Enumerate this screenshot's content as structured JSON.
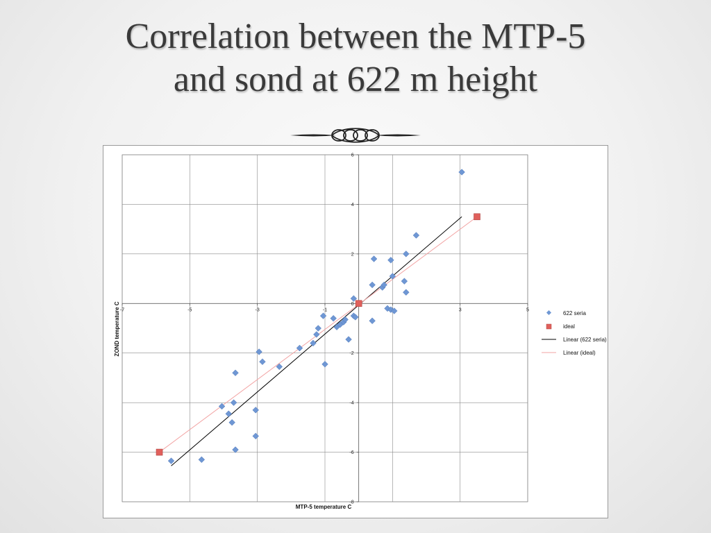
{
  "slide": {
    "title_line1": "Correlation between the MTP-5",
    "title_line2": "and sond at 622 m height"
  },
  "colors": {
    "background": "#f1f1f1",
    "title": "#3a3a3a",
    "series_622": "#6f97d4",
    "series_ideal": "#e0605c",
    "trend_622": "#000000",
    "trend_ideal": "#f2a3a3",
    "grid": "#8a8a8a"
  },
  "chart_data": {
    "type": "scatter",
    "xlabel": "MTP-5 temperature C",
    "ylabel": "ZOND temperature C",
    "xlim": [
      -7,
      5
    ],
    "ylim": [
      -8,
      6
    ],
    "x_ticks": [
      -7,
      -5,
      -3,
      -1,
      1,
      3,
      5
    ],
    "y_ticks": [
      -8,
      -6,
      -4,
      -2,
      0,
      2,
      4,
      6
    ],
    "x_tick_labels": [
      "-7",
      "-5",
      "-3",
      "-1",
      "1",
      "3",
      "5"
    ],
    "y_tick_labels": [
      "-8",
      "-6",
      "-4",
      "-2",
      "0",
      "2",
      "4",
      "6"
    ],
    "grid": true,
    "legend_position": "right",
    "legend": [
      "622 seria",
      "ideal",
      "Linear (622 seria)",
      "Linear (ideal)"
    ],
    "series": [
      {
        "name": "622 seria",
        "marker": "diamond",
        "points": [
          [
            -5.55,
            -6.35
          ],
          [
            -4.65,
            -6.3
          ],
          [
            -3.65,
            -5.9
          ],
          [
            -3.05,
            -5.35
          ],
          [
            -3.05,
            -4.3
          ],
          [
            -3.75,
            -4.8
          ],
          [
            -3.85,
            -4.45
          ],
          [
            -4.05,
            -4.15
          ],
          [
            -3.7,
            -4.0
          ],
          [
            -3.65,
            -2.8
          ],
          [
            -2.95,
            -1.95
          ],
          [
            -2.85,
            -2.35
          ],
          [
            -2.35,
            -2.55
          ],
          [
            -1.75,
            -1.8
          ],
          [
            -1.35,
            -1.6
          ],
          [
            -1.25,
            -1.25
          ],
          [
            -1.2,
            -1.0
          ],
          [
            -1.0,
            -2.45
          ],
          [
            -1.05,
            -0.5
          ],
          [
            -0.75,
            -0.6
          ],
          [
            -0.65,
            -0.95
          ],
          [
            -0.55,
            -0.85
          ],
          [
            -0.45,
            -0.75
          ],
          [
            -0.4,
            -0.65
          ],
          [
            -0.3,
            -1.45
          ],
          [
            -0.15,
            0.2
          ],
          [
            -0.15,
            -0.5
          ],
          [
            -0.1,
            -0.55
          ],
          [
            0.4,
            0.75
          ],
          [
            0.45,
            1.8
          ],
          [
            0.4,
            -0.7
          ],
          [
            0.7,
            0.65
          ],
          [
            0.75,
            0.75
          ],
          [
            0.85,
            -0.2
          ],
          [
            0.95,
            -0.25
          ],
          [
            0.95,
            1.75
          ],
          [
            1.0,
            1.1
          ],
          [
            1.05,
            -0.3
          ],
          [
            1.35,
            0.9
          ],
          [
            1.4,
            0.45
          ],
          [
            1.4,
            2.0
          ],
          [
            1.7,
            2.75
          ],
          [
            3.05,
            5.3
          ]
        ]
      },
      {
        "name": "ideal",
        "marker": "square",
        "points": [
          [
            -5.9,
            -6.0
          ],
          [
            0.0,
            0.0
          ],
          [
            3.5,
            3.5
          ]
        ]
      }
    ],
    "trendlines": [
      {
        "name": "Linear (622 seria)",
        "from": [
          -5.55,
          -6.55
        ],
        "to": [
          3.05,
          3.5
        ]
      },
      {
        "name": "Linear (ideal)",
        "from": [
          -5.9,
          -6.0
        ],
        "to": [
          3.5,
          3.5
        ]
      }
    ]
  }
}
